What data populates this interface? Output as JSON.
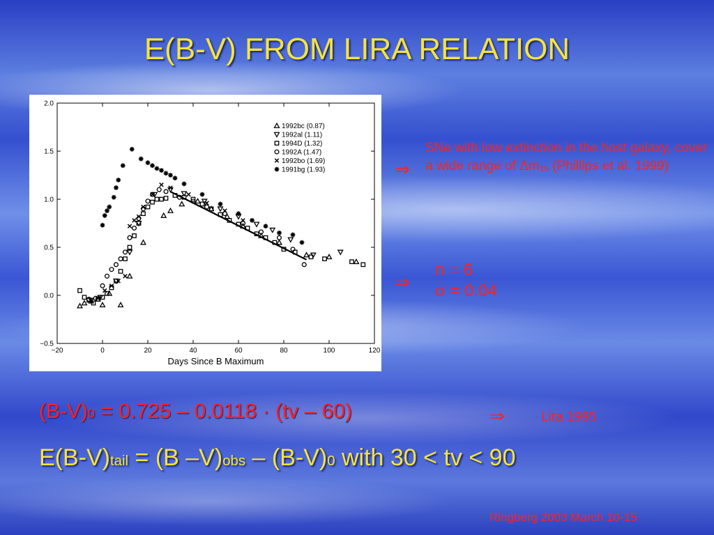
{
  "slide": {
    "title": "E(B-V) FROM LIRA RELATION",
    "note1_text": "SNe with low extinction in the host galaxy, cover a wide range of  Δm",
    "note1_sub": "15",
    "note1_tail": "  (Phillips et al. 1999)",
    "arrow": "⇒",
    "n_line": "n = 6",
    "sigma_line": "σ = 0.04",
    "eq1_a": "(B-V)",
    "eq1_sub": "0",
    "eq1_b": " = 0.725 – 0.0118 · (tv – 60)",
    "lira": "Lira 1995",
    "eq2_a": "E(B-V)",
    "eq2_sub1": "tail",
    "eq2_b": " = (B –V)",
    "eq2_sub2": "obs",
    "eq2_c": " – (B-V)",
    "eq2_sub3": "0",
    "eq2_d": " with 30 < tv < 90",
    "footer": "Ringberg 2003 March 10-15",
    "colors": {
      "title": "#f5e43a",
      "red_text": "#ff2020"
    }
  },
  "chart_data": {
    "type": "scatter",
    "xlabel": "Days Since B Maximum",
    "ylabel": "",
    "xlim": [
      -20,
      120
    ],
    "ylim": [
      -0.5,
      2.0
    ],
    "xticks": [
      -20,
      0,
      20,
      40,
      60,
      80,
      100,
      120
    ],
    "yticks": [
      -0.5,
      0.0,
      0.5,
      1.0,
      1.5,
      2.0
    ],
    "grid": false,
    "legend_position": "top-right",
    "fit_line": {
      "x": [
        30,
        90
      ],
      "y": [
        1.079,
        0.371
      ]
    },
    "series": [
      {
        "name": "1992bc (0.87)",
        "marker": "triangle-up",
        "x": [
          -10,
          -8,
          -5,
          -2,
          0,
          3,
          8,
          12,
          18,
          27,
          30,
          35,
          42,
          48,
          55,
          62,
          70,
          78,
          90,
          100,
          112
        ],
        "y": [
          -0.11,
          -0.08,
          -0.06,
          -0.04,
          -0.1,
          0.02,
          -0.1,
          0.2,
          0.55,
          0.83,
          0.88,
          0.95,
          0.98,
          0.9,
          0.82,
          0.72,
          0.62,
          0.55,
          0.42,
          0.4,
          0.35
        ]
      },
      {
        "name": "1992al (1.11)",
        "marker": "triangle-down",
        "x": [
          -5,
          -1,
          6,
          12,
          16,
          23,
          30,
          36,
          45,
          52,
          60,
          68,
          75,
          83,
          93,
          105
        ],
        "y": [
          -0.05,
          -0.02,
          0.15,
          0.45,
          0.75,
          1.05,
          1.1,
          1.06,
          0.98,
          0.9,
          0.82,
          0.74,
          0.68,
          0.58,
          0.42,
          0.45
        ]
      },
      {
        "name": "1994D (1.32)",
        "marker": "square",
        "x": [
          -10,
          -8,
          -6,
          -4,
          -2,
          0,
          2,
          4,
          6,
          8,
          10,
          12,
          14,
          16,
          18,
          20,
          22,
          24,
          26,
          28,
          32,
          36,
          40,
          44,
          48,
          52,
          56,
          60,
          64,
          68,
          72,
          76,
          80,
          85,
          92,
          98,
          110,
          115
        ],
        "y": [
          0.05,
          -0.02,
          -0.05,
          -0.08,
          -0.04,
          -0.02,
          0.02,
          0.08,
          0.15,
          0.25,
          0.38,
          0.5,
          0.62,
          0.75,
          0.85,
          0.92,
          0.97,
          1.0,
          1.0,
          1.01,
          1.04,
          1.02,
          1.0,
          0.95,
          0.9,
          0.84,
          0.78,
          0.74,
          0.7,
          0.64,
          0.6,
          0.55,
          0.48,
          0.45,
          0.4,
          0.38,
          0.35,
          0.32
        ]
      },
      {
        "name": "1992A (1.47)",
        "marker": "circle",
        "x": [
          -6,
          -3,
          0,
          2,
          4,
          6,
          8,
          10,
          12,
          14,
          16,
          18,
          20,
          22,
          25,
          28,
          34,
          40,
          46,
          54,
          62,
          70,
          78,
          84,
          89
        ],
        "y": [
          -0.04,
          -0.03,
          0.1,
          0.2,
          0.27,
          0.32,
          0.38,
          0.45,
          0.6,
          0.7,
          0.8,
          0.9,
          0.98,
          1.05,
          1.1,
          1.08,
          1.02,
          0.98,
          0.92,
          0.85,
          0.75,
          0.66,
          0.6,
          0.48,
          0.32
        ]
      },
      {
        "name": "1992bo (1.69)",
        "marker": "cross",
        "x": [
          -5,
          -2,
          1,
          4,
          7,
          10,
          12,
          14,
          16,
          18,
          22,
          26,
          30,
          38,
          46,
          54,
          62
        ],
        "y": [
          -0.06,
          -0.03,
          0.05,
          0.1,
          0.15,
          0.2,
          0.72,
          0.78,
          0.82,
          0.92,
          1.05,
          1.15,
          1.12,
          1.05,
          0.96,
          0.88,
          0.78
        ]
      },
      {
        "name": "1991bg (1.93)",
        "marker": "asterisk",
        "x": [
          0,
          1,
          2,
          3,
          5,
          6,
          7,
          9,
          13,
          17,
          20,
          22,
          24,
          26,
          28,
          30,
          32,
          36,
          44,
          52,
          60,
          66,
          72,
          78,
          84,
          88
        ],
        "y": [
          0.73,
          0.83,
          0.88,
          0.92,
          1.02,
          1.12,
          1.2,
          1.35,
          1.52,
          1.42,
          1.38,
          1.35,
          1.32,
          1.3,
          1.27,
          1.25,
          1.22,
          1.16,
          1.05,
          0.95,
          0.85,
          0.78,
          0.72,
          0.65,
          0.63,
          0.55
        ]
      }
    ]
  }
}
